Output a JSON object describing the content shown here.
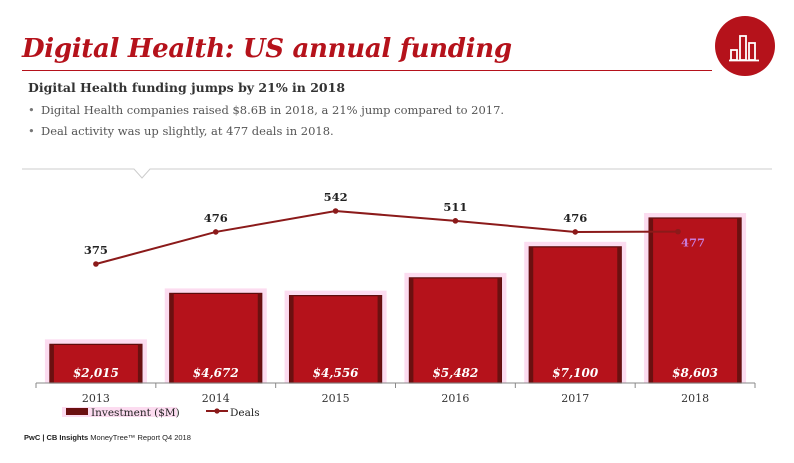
{
  "header": {
    "title": "Digital Health: US annual funding",
    "subtitle": "Digital Health funding jumps by 21% in 2018",
    "bullets": [
      "Digital Health companies raised $8.6B in 2018, a 21% jump compared to 2017.",
      "Deal activity was up slightly, at 477 deals in 2018."
    ],
    "logo_icon": "bar-chart-icon"
  },
  "footer": {
    "brand": "PwC | CB Insights",
    "text": "MoneyTree™ Report Q4 2018"
  },
  "colors": {
    "brand_red": "#b5121b",
    "deals_line": "#8b1a1a",
    "pink_highlight": "#fcdcf0",
    "label_white": "#ffffff",
    "label_477": "#c87ad8"
  },
  "chart_data": {
    "type": "bar",
    "categories": [
      "2013",
      "2014",
      "2015",
      "2016",
      "2017",
      "2018"
    ],
    "series": [
      {
        "name": "Investment ($M)",
        "type": "bar",
        "values": [
          2015,
          4672,
          4556,
          5482,
          7100,
          8603
        ],
        "labels": [
          "$2,015",
          "$4,672",
          "$4,556",
          "$5,482",
          "$7,100",
          "$8,603"
        ]
      },
      {
        "name": "Deals",
        "type": "line",
        "values": [
          375,
          476,
          542,
          511,
          476,
          477
        ],
        "labels": [
          "375",
          "476",
          "542",
          "511",
          "476",
          "477"
        ]
      }
    ],
    "legend": {
      "placement": "bottom-left"
    },
    "grid": false
  }
}
